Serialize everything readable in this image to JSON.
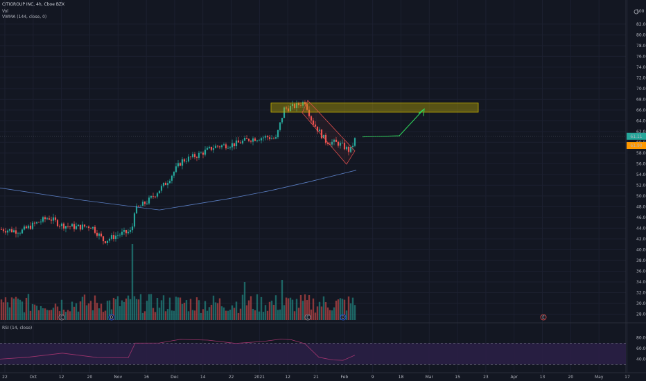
{
  "header": {
    "symbol_line": "CITIGROUP INC, 4h, Cboe BZX",
    "volume_label": "Vol",
    "vwma_label": "VWMA (144, close, 0)",
    "rsi_label": "RSI (14, close)"
  },
  "chart_data": {
    "type": "candlestick",
    "title": "CITIGROUP INC, 4h, Cboe BZX",
    "y_axis": {
      "ticks": [
        28,
        30,
        32,
        34,
        36,
        38,
        40,
        42,
        44,
        46,
        48,
        50,
        52,
        54,
        56,
        58,
        60,
        62,
        64,
        66,
        68,
        70,
        72,
        74,
        76,
        78,
        80,
        82
      ],
      "top_tick_label": "100",
      "price_label": "61.11",
      "price_label_color": "#26a69a",
      "alert_label": "61.90",
      "alert_label_color": "#ff9800",
      "range": [
        26.9,
        85.2
      ]
    },
    "x_axis": {
      "ticks": [
        "22",
        "Oct",
        "12",
        "20",
        "Nov",
        "16",
        "Dec",
        "14",
        "22",
        "2021",
        "12",
        "21",
        "Feb",
        "9",
        "18",
        "Mar",
        "15",
        "23",
        "Apr",
        "13",
        "20",
        "May",
        "17"
      ]
    },
    "ohlc_trend": [
      {
        "segment": "late Sep to early Nov",
        "approx_range": [
          41,
          46
        ]
      },
      {
        "segment": "gap up after Nov 9",
        "approx_range": [
          47,
          56
        ]
      },
      {
        "segment": "Dec",
        "approx_range": [
          57,
          61
        ]
      },
      {
        "segment": "early Jan spike",
        "approx_range": [
          64,
          69
        ]
      },
      {
        "segment": "late Jan pullback",
        "approx_range": [
          57,
          61.5
        ]
      }
    ],
    "vwma": {
      "name": "VWMA (144, close, 0)",
      "color": "#5b7fc4",
      "approx_values": [
        51.5,
        49.2,
        47.4,
        49.5,
        51.0,
        52.6,
        54.8
      ]
    },
    "annotations": {
      "supply_zone": {
        "low": 65.6,
        "high": 67.3,
        "color": "#c8b400"
      },
      "forecast_path_color": "#2ed55b",
      "channel_color": "#ef5350"
    },
    "volume": {
      "up_color": "#26a69a",
      "down_color": "#ef5350"
    },
    "rsi": {
      "name": "RSI (14, close)",
      "levels": [
        70,
        30
      ],
      "ticks": [
        40,
        60,
        80
      ],
      "line_color": "#a3356f",
      "band_color": "#2a1f45"
    },
    "event_markers": [
      "E",
      "D",
      "E",
      "D",
      "E"
    ]
  }
}
